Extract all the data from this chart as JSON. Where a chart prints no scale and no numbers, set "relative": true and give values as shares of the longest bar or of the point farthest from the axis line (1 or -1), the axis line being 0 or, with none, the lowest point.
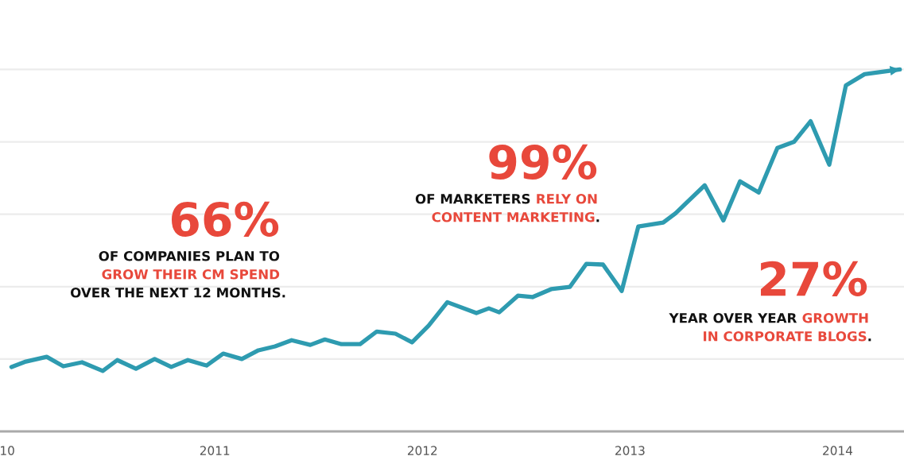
{
  "chart_data": {
    "type": "line",
    "relative": true,
    "grid": "y",
    "legend": false,
    "marker": "none",
    "line_style": "solid",
    "xlim": [
      2009.965,
      2014.32
    ],
    "xticks": [
      {
        "value": 2010,
        "label": "10"
      },
      2011,
      2012,
      2013,
      2014
    ],
    "tick_labels": "x",
    "series": [
      {
        "color": "#2e9bb0",
        "x": [
          2010.02,
          2010.09,
          2010.19,
          2010.27,
          2010.36,
          2010.46,
          2010.53,
          2010.62,
          2010.71,
          2010.79,
          2010.87,
          2010.96,
          2011.04,
          2011.13,
          2011.21,
          2011.29,
          2011.37,
          2011.46,
          2011.53,
          2011.61,
          2011.7,
          2011.78,
          2011.87,
          2011.95,
          2012.03,
          2012.12,
          2012.26,
          2012.32,
          2012.37,
          2012.46,
          2012.53,
          2012.62,
          2012.71,
          2012.79,
          2012.87,
          2012.96,
          2013.04,
          2013.16,
          2013.22,
          2013.36,
          2013.45,
          2013.53,
          2013.62,
          2013.71,
          2013.79,
          2013.87,
          2013.96,
          2014.04,
          2014.13,
          2014.3
        ],
        "values": [
          0.178,
          0.193,
          0.206,
          0.18,
          0.191,
          0.167,
          0.197,
          0.173,
          0.2,
          0.178,
          0.197,
          0.182,
          0.215,
          0.2,
          0.224,
          0.235,
          0.252,
          0.239,
          0.254,
          0.241,
          0.241,
          0.276,
          0.27,
          0.246,
          0.292,
          0.357,
          0.327,
          0.34,
          0.329,
          0.375,
          0.371,
          0.393,
          0.399,
          0.463,
          0.461,
          0.388,
          0.566,
          0.577,
          0.603,
          0.68,
          0.583,
          0.691,
          0.66,
          0.783,
          0.8,
          0.857,
          0.737,
          0.956,
          0.987,
          1
        ]
      }
    ],
    "annotations": [
      "66%",
      "OF COMPANIES PLAN TO",
      "GROW THEIR CM SPEND",
      "OVER THE NEXT 12 MONTHS.",
      "99%",
      "OF MARKETERS",
      "RELY ON",
      "CONTENT MARKETING",
      ".",
      "27%",
      "YEAR OVER YEAR",
      "GROWTH",
      "IN CORPORATE BLOGS",
      "."
    ]
  }
}
